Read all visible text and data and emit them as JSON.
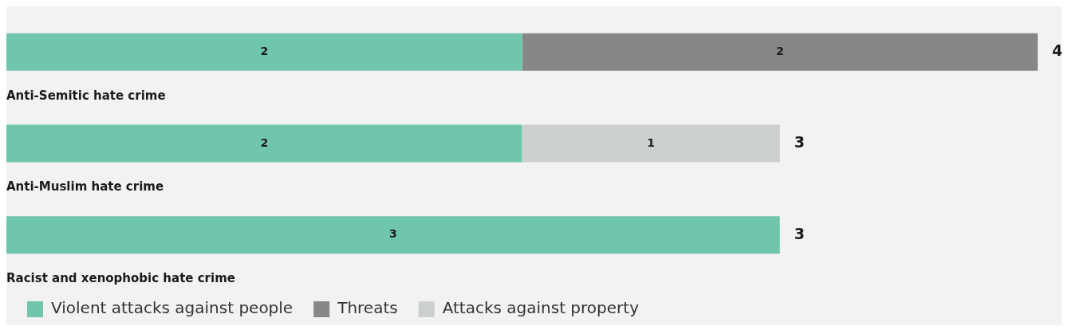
{
  "chart_data": {
    "type": "bar",
    "orientation": "horizontal",
    "stacked": true,
    "tick_labels": false,
    "categories": [
      "Anti-Semitic hate crime",
      "Anti-Muslim hate crime",
      "Racist and xenophobic hate crime"
    ],
    "series": [
      {
        "name": "Violent attacks against people",
        "color": "#70c5ad",
        "values": [
          2,
          2,
          3
        ]
      },
      {
        "name": "Threats",
        "color": "#878787",
        "values": [
          2,
          null,
          null
        ]
      },
      {
        "name": "Attacks against property",
        "color": "#cbcfce",
        "values": [
          null,
          1,
          null
        ]
      }
    ],
    "data_labels": true,
    "totals": [
      "4",
      "3",
      "3"
    ],
    "legend": "bottom left"
  }
}
